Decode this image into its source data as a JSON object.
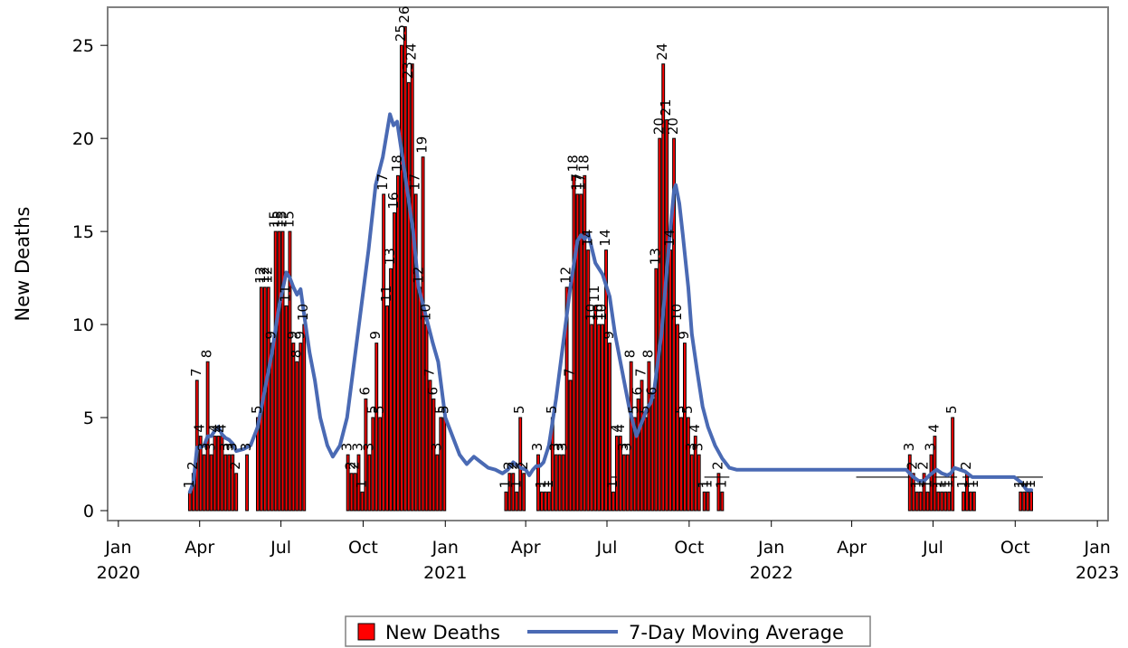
{
  "chart_data": {
    "type": "bar",
    "ylabel": "New Deaths",
    "ylim": [
      0,
      27
    ],
    "yticks": [
      0,
      5,
      10,
      15,
      20,
      25
    ],
    "xlim": [
      "2019-12-21",
      "2023-01-12"
    ],
    "xticks": [
      {
        "date": "2020-01-01",
        "label": "Jan",
        "sub": "2020"
      },
      {
        "date": "2020-04-01",
        "label": "Apr",
        "sub": ""
      },
      {
        "date": "2020-07-01",
        "label": "Jul",
        "sub": ""
      },
      {
        "date": "2020-10-01",
        "label": "Oct",
        "sub": ""
      },
      {
        "date": "2021-01-01",
        "label": "Jan",
        "sub": "2021"
      },
      {
        "date": "2021-04-01",
        "label": "Apr",
        "sub": ""
      },
      {
        "date": "2021-07-01",
        "label": "Jul",
        "sub": ""
      },
      {
        "date": "2021-10-01",
        "label": "Oct",
        "sub": ""
      },
      {
        "date": "2022-01-01",
        "label": "Jan",
        "sub": "2022"
      },
      {
        "date": "2022-04-01",
        "label": "Apr",
        "sub": ""
      },
      {
        "date": "2022-07-01",
        "label": "Jul",
        "sub": ""
      },
      {
        "date": "2022-10-01",
        "label": "Oct",
        "sub": ""
      },
      {
        "date": "2023-01-01",
        "label": "Jan",
        "sub": "2023"
      }
    ],
    "legend": [
      "New Deaths",
      "7-Day Moving Average"
    ],
    "legend_position": "bottom",
    "bar_color": "#ff0000",
    "line_color": "#4a6ab4",
    "bars": [
      {
        "date": "2020-03-21",
        "value": 1
      },
      {
        "date": "2020-03-25",
        "value": 2
      },
      {
        "date": "2020-03-29",
        "value": 7
      },
      {
        "date": "2020-04-02",
        "value": 4
      },
      {
        "date": "2020-04-06",
        "value": 3
      },
      {
        "date": "2020-04-10",
        "value": 8
      },
      {
        "date": "2020-04-14",
        "value": 3
      },
      {
        "date": "2020-04-18",
        "value": 4
      },
      {
        "date": "2020-04-22",
        "value": 4
      },
      {
        "date": "2020-04-26",
        "value": 4
      },
      {
        "date": "2020-04-30",
        "value": 3
      },
      {
        "date": "2020-05-04",
        "value": 3
      },
      {
        "date": "2020-05-08",
        "value": 3
      },
      {
        "date": "2020-05-12",
        "value": 2
      },
      {
        "date": "2020-05-24",
        "value": 3
      },
      {
        "date": "2020-06-05",
        "value": 5
      },
      {
        "date": "2020-06-09",
        "value": 12
      },
      {
        "date": "2020-06-13",
        "value": 12
      },
      {
        "date": "2020-06-17",
        "value": 12
      },
      {
        "date": "2020-06-21",
        "value": 9
      },
      {
        "date": "2020-06-25",
        "value": 15
      },
      {
        "date": "2020-06-29",
        "value": 15
      },
      {
        "date": "2020-07-03",
        "value": 15
      },
      {
        "date": "2020-07-07",
        "value": 11
      },
      {
        "date": "2020-07-11",
        "value": 15
      },
      {
        "date": "2020-07-15",
        "value": 9
      },
      {
        "date": "2020-07-19",
        "value": 8
      },
      {
        "date": "2020-07-23",
        "value": 9
      },
      {
        "date": "2020-07-27",
        "value": 10
      },
      {
        "date": "2020-09-14",
        "value": 3
      },
      {
        "date": "2020-09-18",
        "value": 2
      },
      {
        "date": "2020-09-22",
        "value": 2
      },
      {
        "date": "2020-09-26",
        "value": 3
      },
      {
        "date": "2020-09-30",
        "value": 1
      },
      {
        "date": "2020-10-04",
        "value": 6
      },
      {
        "date": "2020-10-08",
        "value": 3
      },
      {
        "date": "2020-10-12",
        "value": 5
      },
      {
        "date": "2020-10-16",
        "value": 9
      },
      {
        "date": "2020-10-20",
        "value": 5
      },
      {
        "date": "2020-10-24",
        "value": 17
      },
      {
        "date": "2020-10-28",
        "value": 11
      },
      {
        "date": "2020-11-01",
        "value": 13
      },
      {
        "date": "2020-11-05",
        "value": 16
      },
      {
        "date": "2020-11-09",
        "value": 18
      },
      {
        "date": "2020-11-13",
        "value": 25
      },
      {
        "date": "2020-11-17",
        "value": 26
      },
      {
        "date": "2020-11-21",
        "value": 23
      },
      {
        "date": "2020-11-25",
        "value": 24
      },
      {
        "date": "2020-11-29",
        "value": 17
      },
      {
        "date": "2020-12-03",
        "value": 12
      },
      {
        "date": "2020-12-07",
        "value": 19
      },
      {
        "date": "2020-12-11",
        "value": 10
      },
      {
        "date": "2020-12-15",
        "value": 7
      },
      {
        "date": "2020-12-19",
        "value": 6
      },
      {
        "date": "2020-12-23",
        "value": 3
      },
      {
        "date": "2020-12-27",
        "value": 5
      },
      {
        "date": "2020-12-31",
        "value": 5
      },
      {
        "date": "2021-03-10",
        "value": 1
      },
      {
        "date": "2021-03-14",
        "value": 2
      },
      {
        "date": "2021-03-18",
        "value": 2
      },
      {
        "date": "2021-03-22",
        "value": 1
      },
      {
        "date": "2021-03-26",
        "value": 5
      },
      {
        "date": "2021-03-30",
        "value": 2
      },
      {
        "date": "2021-04-15",
        "value": 3
      },
      {
        "date": "2021-04-19",
        "value": 1
      },
      {
        "date": "2021-04-23",
        "value": 1
      },
      {
        "date": "2021-04-27",
        "value": 1
      },
      {
        "date": "2021-05-01",
        "value": 5
      },
      {
        "date": "2021-05-05",
        "value": 3
      },
      {
        "date": "2021-05-09",
        "value": 3
      },
      {
        "date": "2021-05-13",
        "value": 3
      },
      {
        "date": "2021-05-17",
        "value": 12
      },
      {
        "date": "2021-05-21",
        "value": 7
      },
      {
        "date": "2021-05-25",
        "value": 18
      },
      {
        "date": "2021-05-29",
        "value": 17
      },
      {
        "date": "2021-06-02",
        "value": 17
      },
      {
        "date": "2021-06-06",
        "value": 18
      },
      {
        "date": "2021-06-10",
        "value": 14
      },
      {
        "date": "2021-06-14",
        "value": 10
      },
      {
        "date": "2021-06-18",
        "value": 11
      },
      {
        "date": "2021-06-22",
        "value": 10
      },
      {
        "date": "2021-06-26",
        "value": 10
      },
      {
        "date": "2021-06-30",
        "value": 14
      },
      {
        "date": "2021-07-04",
        "value": 9
      },
      {
        "date": "2021-07-08",
        "value": 1
      },
      {
        "date": "2021-07-12",
        "value": 4
      },
      {
        "date": "2021-07-16",
        "value": 4
      },
      {
        "date": "2021-07-20",
        "value": 3
      },
      {
        "date": "2021-07-24",
        "value": 3
      },
      {
        "date": "2021-07-28",
        "value": 8
      },
      {
        "date": "2021-08-01",
        "value": 5
      },
      {
        "date": "2021-08-05",
        "value": 6
      },
      {
        "date": "2021-08-09",
        "value": 7
      },
      {
        "date": "2021-08-13",
        "value": 5
      },
      {
        "date": "2021-08-17",
        "value": 8
      },
      {
        "date": "2021-08-21",
        "value": 6
      },
      {
        "date": "2021-08-25",
        "value": 13
      },
      {
        "date": "2021-08-29",
        "value": 20
      },
      {
        "date": "2021-09-02",
        "value": 24
      },
      {
        "date": "2021-09-06",
        "value": 21
      },
      {
        "date": "2021-09-10",
        "value": 14
      },
      {
        "date": "2021-09-14",
        "value": 20
      },
      {
        "date": "2021-09-18",
        "value": 10
      },
      {
        "date": "2021-09-22",
        "value": 5
      },
      {
        "date": "2021-09-26",
        "value": 9
      },
      {
        "date": "2021-09-30",
        "value": 5
      },
      {
        "date": "2021-10-04",
        "value": 3
      },
      {
        "date": "2021-10-08",
        "value": 4
      },
      {
        "date": "2021-10-12",
        "value": 3
      },
      {
        "date": "2021-10-18",
        "value": 1
      },
      {
        "date": "2021-10-22",
        "value": 1
      },
      {
        "date": "2021-11-03",
        "value": 2
      },
      {
        "date": "2021-11-07",
        "value": 1
      },
      {
        "date": "2022-06-05",
        "value": 3
      },
      {
        "date": "2022-06-09",
        "value": 2
      },
      {
        "date": "2022-06-13",
        "value": 1
      },
      {
        "date": "2022-06-17",
        "value": 1
      },
      {
        "date": "2022-06-21",
        "value": 2
      },
      {
        "date": "2022-06-25",
        "value": 1
      },
      {
        "date": "2022-06-29",
        "value": 3
      },
      {
        "date": "2022-07-03",
        "value": 4
      },
      {
        "date": "2022-07-07",
        "value": 1
      },
      {
        "date": "2022-07-11",
        "value": 1
      },
      {
        "date": "2022-07-15",
        "value": 1
      },
      {
        "date": "2022-07-19",
        "value": 1
      },
      {
        "date": "2022-07-23",
        "value": 5
      },
      {
        "date": "2022-08-04",
        "value": 1
      },
      {
        "date": "2022-08-08",
        "value": 2
      },
      {
        "date": "2022-08-12",
        "value": 1
      },
      {
        "date": "2022-08-16",
        "value": 1
      },
      {
        "date": "2022-10-07",
        "value": 1
      },
      {
        "date": "2022-10-11",
        "value": 1
      },
      {
        "date": "2022-10-15",
        "value": 1
      },
      {
        "date": "2022-10-19",
        "value": 1
      }
    ],
    "moving_average": [
      {
        "date": "2020-03-21",
        "value": 1
      },
      {
        "date": "2020-03-25",
        "value": 1.5
      },
      {
        "date": "2020-03-29",
        "value": 3.4
      },
      {
        "date": "2020-04-02",
        "value": 3.4
      },
      {
        "date": "2020-04-06",
        "value": 3.5
      },
      {
        "date": "2020-04-10",
        "value": 4
      },
      {
        "date": "2020-04-14",
        "value": 4
      },
      {
        "date": "2020-04-18",
        "value": 4.3
      },
      {
        "date": "2020-04-22",
        "value": 4.5
      },
      {
        "date": "2020-04-26",
        "value": 4.1
      },
      {
        "date": "2020-04-30",
        "value": 3.9
      },
      {
        "date": "2020-05-04",
        "value": 3.8
      },
      {
        "date": "2020-05-08",
        "value": 3.6
      },
      {
        "date": "2020-05-12",
        "value": 3.2
      },
      {
        "date": "2020-05-20",
        "value": 3.3
      },
      {
        "date": "2020-05-28",
        "value": 3.5
      },
      {
        "date": "2020-06-05",
        "value": 4.5
      },
      {
        "date": "2020-06-13",
        "value": 6.5
      },
      {
        "date": "2020-06-21",
        "value": 8.5
      },
      {
        "date": "2020-06-29",
        "value": 11
      },
      {
        "date": "2020-07-07",
        "value": 12.8
      },
      {
        "date": "2020-07-11",
        "value": 12.5
      },
      {
        "date": "2020-07-15",
        "value": 12
      },
      {
        "date": "2020-07-19",
        "value": 11.6
      },
      {
        "date": "2020-07-23",
        "value": 11.9
      },
      {
        "date": "2020-07-27",
        "value": 10.5
      },
      {
        "date": "2020-08-02",
        "value": 8.5
      },
      {
        "date": "2020-08-08",
        "value": 7
      },
      {
        "date": "2020-08-14",
        "value": 5
      },
      {
        "date": "2020-08-22",
        "value": 3.5
      },
      {
        "date": "2020-08-28",
        "value": 2.9
      },
      {
        "date": "2020-09-05",
        "value": 3.5
      },
      {
        "date": "2020-09-13",
        "value": 5
      },
      {
        "date": "2020-09-21",
        "value": 8
      },
      {
        "date": "2020-09-29",
        "value": 11
      },
      {
        "date": "2020-10-07",
        "value": 14
      },
      {
        "date": "2020-10-15",
        "value": 17.5
      },
      {
        "date": "2020-10-23",
        "value": 19
      },
      {
        "date": "2020-10-31",
        "value": 21.3
      },
      {
        "date": "2020-11-04",
        "value": 20.7
      },
      {
        "date": "2020-11-08",
        "value": 20.9
      },
      {
        "date": "2020-11-14",
        "value": 19
      },
      {
        "date": "2020-11-20",
        "value": 17
      },
      {
        "date": "2020-11-26",
        "value": 15
      },
      {
        "date": "2020-12-02",
        "value": 12
      },
      {
        "date": "2020-12-10",
        "value": 10.5
      },
      {
        "date": "2020-12-18",
        "value": 9
      },
      {
        "date": "2020-12-24",
        "value": 8
      },
      {
        "date": "2021-01-01",
        "value": 5
      },
      {
        "date": "2021-01-09",
        "value": 4
      },
      {
        "date": "2021-01-17",
        "value": 3
      },
      {
        "date": "2021-01-25",
        "value": 2.5
      },
      {
        "date": "2021-02-02",
        "value": 2.9
      },
      {
        "date": "2021-02-10",
        "value": 2.6
      },
      {
        "date": "2021-02-18",
        "value": 2.3
      },
      {
        "date": "2021-02-26",
        "value": 2.2
      },
      {
        "date": "2021-03-06",
        "value": 2
      },
      {
        "date": "2021-03-12",
        "value": 2.2
      },
      {
        "date": "2021-03-18",
        "value": 2.6
      },
      {
        "date": "2021-03-26",
        "value": 2.3
      },
      {
        "date": "2021-04-01",
        "value": 2.2
      },
      {
        "date": "2021-04-05",
        "value": 1.9
      },
      {
        "date": "2021-04-09",
        "value": 2.2
      },
      {
        "date": "2021-04-13",
        "value": 2.4
      },
      {
        "date": "2021-04-17",
        "value": 2.4
      },
      {
        "date": "2021-04-21",
        "value": 2.6
      },
      {
        "date": "2021-04-27",
        "value": 3.5
      },
      {
        "date": "2021-05-05",
        "value": 6
      },
      {
        "date": "2021-05-13",
        "value": 9
      },
      {
        "date": "2021-05-21",
        "value": 12
      },
      {
        "date": "2021-05-29",
        "value": 14.5
      },
      {
        "date": "2021-06-02",
        "value": 14.8
      },
      {
        "date": "2021-06-06",
        "value": 14.6
      },
      {
        "date": "2021-06-10",
        "value": 14.9
      },
      {
        "date": "2021-06-14",
        "value": 14.1
      },
      {
        "date": "2021-06-18",
        "value": 13.3
      },
      {
        "date": "2021-06-26",
        "value": 12.7
      },
      {
        "date": "2021-07-04",
        "value": 11.5
      },
      {
        "date": "2021-07-10",
        "value": 9.5
      },
      {
        "date": "2021-07-18",
        "value": 7.5
      },
      {
        "date": "2021-07-26",
        "value": 5.5
      },
      {
        "date": "2021-08-03",
        "value": 4
      },
      {
        "date": "2021-08-07",
        "value": 4.5
      },
      {
        "date": "2021-08-11",
        "value": 5
      },
      {
        "date": "2021-08-15",
        "value": 5.5
      },
      {
        "date": "2021-08-19",
        "value": 5.8
      },
      {
        "date": "2021-08-23",
        "value": 6.5
      },
      {
        "date": "2021-08-31",
        "value": 9.5
      },
      {
        "date": "2021-09-08",
        "value": 14
      },
      {
        "date": "2021-09-14",
        "value": 17.2
      },
      {
        "date": "2021-09-16",
        "value": 17.5
      },
      {
        "date": "2021-09-20",
        "value": 16.5
      },
      {
        "date": "2021-09-24",
        "value": 14.8
      },
      {
        "date": "2021-09-30",
        "value": 12
      },
      {
        "date": "2021-10-04",
        "value": 9.5
      },
      {
        "date": "2021-10-10",
        "value": 7.5
      },
      {
        "date": "2021-10-16",
        "value": 5.6
      },
      {
        "date": "2021-10-22",
        "value": 4.5
      },
      {
        "date": "2021-10-30",
        "value": 3.5
      },
      {
        "date": "2021-11-07",
        "value": 2.8
      },
      {
        "date": "2021-11-15",
        "value": 2.3
      },
      {
        "date": "2021-11-23",
        "value": 2.2
      },
      {
        "date": "2022-06-01",
        "value": 2.2
      },
      {
        "date": "2022-06-09",
        "value": 1.8
      },
      {
        "date": "2022-06-15",
        "value": 1.6
      },
      {
        "date": "2022-06-21",
        "value": 1.6
      },
      {
        "date": "2022-06-27",
        "value": 1.9
      },
      {
        "date": "2022-07-05",
        "value": 2.2
      },
      {
        "date": "2022-07-11",
        "value": 2
      },
      {
        "date": "2022-07-17",
        "value": 1.9
      },
      {
        "date": "2022-07-21",
        "value": 2
      },
      {
        "date": "2022-07-25",
        "value": 2.3
      },
      {
        "date": "2022-07-31",
        "value": 2.2
      },
      {
        "date": "2022-08-06",
        "value": 2.1
      },
      {
        "date": "2022-08-14",
        "value": 1.8
      },
      {
        "date": "2022-08-24",
        "value": 1.8
      },
      {
        "date": "2022-09-30",
        "value": 1.8
      },
      {
        "date": "2022-10-08",
        "value": 1.5
      },
      {
        "date": "2022-10-14",
        "value": 1.1
      },
      {
        "date": "2022-10-19",
        "value": 1.1
      }
    ]
  }
}
